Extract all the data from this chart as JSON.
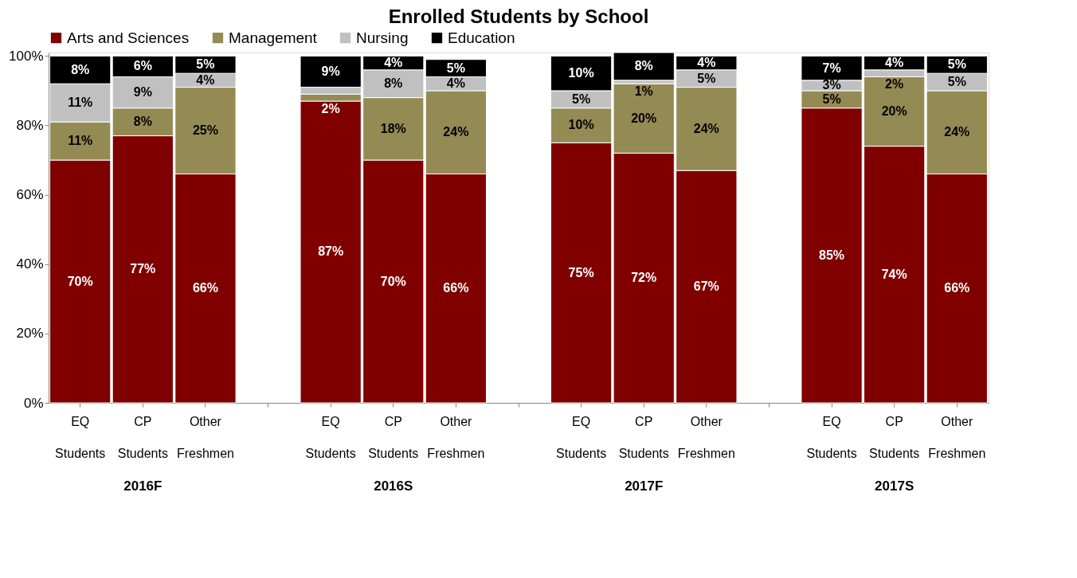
{
  "chart_data": {
    "type": "bar",
    "stacked": true,
    "title": "Enrolled Students by School",
    "categories": [
      "EQ Students",
      "CP Students",
      "Other Freshmen",
      null,
      "EQ Students",
      "CP Students",
      "Other Freshmen",
      null,
      "EQ Students",
      "CP Students",
      "Other Freshmen",
      null,
      "EQ Students",
      "CP Students",
      "Other Freshmen"
    ],
    "series": [
      {
        "name": "Arts and Sciences",
        "color": "#800000",
        "values": [
          70,
          77,
          66,
          null,
          87,
          70,
          66,
          null,
          75,
          72,
          67,
          null,
          85,
          74,
          66
        ],
        "value_labels": [
          "70%",
          "77%",
          "66%",
          null,
          "87%",
          "70%",
          "66%",
          null,
          "75%",
          "72%",
          "67%",
          null,
          "85%",
          "74%",
          "66%"
        ]
      },
      {
        "name": "Management",
        "color": "#948a54",
        "values": [
          11,
          8,
          25,
          null,
          2,
          18,
          24,
          null,
          10,
          20,
          24,
          null,
          5,
          20,
          24
        ],
        "value_labels": [
          "11%",
          "8%",
          "25%",
          null,
          "2%",
          "18%",
          "24%",
          null,
          "10%",
          "20%",
          "24%",
          null,
          "5%",
          "20%",
          "24%"
        ]
      },
      {
        "name": "Nursing",
        "color": "#c0c0c0",
        "values": [
          11,
          9,
          4,
          null,
          2,
          8,
          4,
          null,
          5,
          1,
          5,
          null,
          3,
          2,
          5
        ],
        "value_labels": [
          "11%",
          "9%",
          "4%",
          null,
          null,
          "8%",
          "4%",
          null,
          "5%",
          "1%",
          "5%",
          null,
          "3%",
          "2%",
          "5%"
        ]
      },
      {
        "name": "Education",
        "color": "#000000",
        "values": [
          8,
          6,
          5,
          null,
          9,
          4,
          5,
          null,
          10,
          8,
          4,
          null,
          7,
          4,
          5
        ],
        "value_labels": [
          "8%",
          "6%",
          "5%",
          null,
          "9%",
          "4%",
          "5%",
          null,
          "10%",
          "8%",
          "4%",
          null,
          "7%",
          "4%",
          "5%"
        ]
      }
    ],
    "ylim": [
      0,
      101
    ],
    "yticks": [
      {
        "value": 0,
        "label": "0%"
      },
      {
        "value": 20,
        "label": "20%"
      },
      {
        "value": 40,
        "label": "40%"
      },
      {
        "value": 60,
        "label": "60%"
      },
      {
        "value": 80,
        "label": "80%"
      },
      {
        "value": 100,
        "label": "100%"
      }
    ],
    "annotations": [
      "2016F",
      "2016S",
      "2017F",
      "2017S"
    ],
    "legend": "top",
    "grid": false
  }
}
